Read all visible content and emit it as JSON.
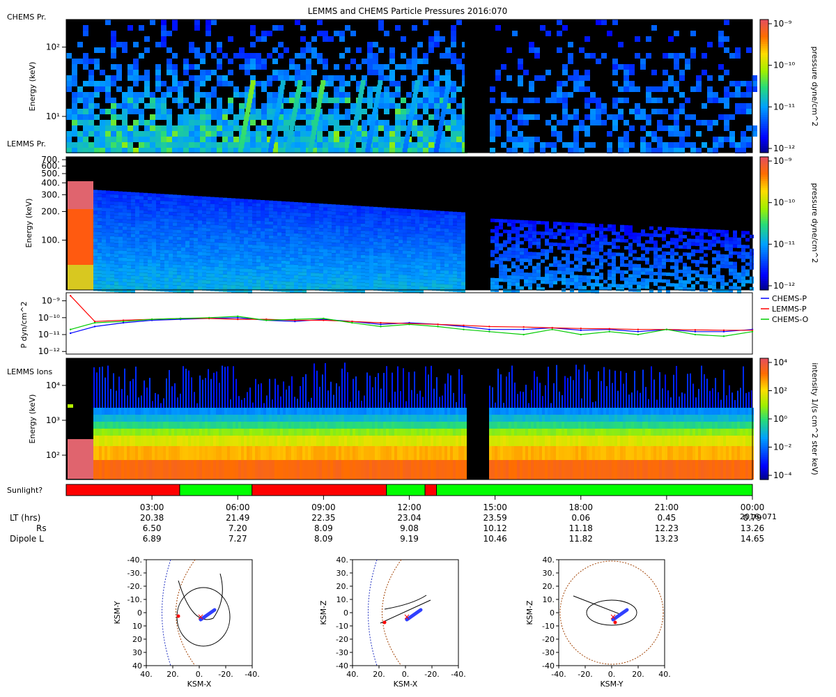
{
  "title": "LEMMS and CHEMS Particle Pressures  2016:070",
  "panel_labels": {
    "chems": "CHEMS Pr.",
    "lemms": "LEMMS Pr.",
    "ions": "LEMMS Ions",
    "sunlight": "Sunlight?"
  },
  "colors": {
    "chems_p": "#0000ff",
    "lemms_p": "#ff0000",
    "chems_o": "#00cc00",
    "sun_red": "#ff0000",
    "sun_green": "#00ff00",
    "background": "#000000"
  },
  "chart_data": [
    {
      "id": "chems-spectrogram",
      "type": "heatmap",
      "ylabel": "Energy (keV)",
      "yscale": "log",
      "ylim": [
        3,
        250
      ],
      "yticks": [
        {
          "value": 10,
          "label": "10¹"
        },
        {
          "value": 100,
          "label": "10²"
        }
      ],
      "colorbar": {
        "label": "pressure dyne/cm^2",
        "scale": "log",
        "range": [
          1e-12,
          1e-09
        ],
        "ticks": [
          "10⁻⁹",
          "10⁻¹⁰",
          "10⁻¹¹",
          "10⁻¹²"
        ]
      },
      "data_gap_hours": [
        13.95,
        14.7
      ]
    },
    {
      "id": "lemms-spectrogram",
      "type": "heatmap",
      "ylabel": "Energy (keV)",
      "yscale": "log",
      "ylim": [
        30,
        750
      ],
      "yticks": [
        {
          "value": 100,
          "label": "100."
        },
        {
          "value": 200,
          "label": "200."
        },
        {
          "value": 300,
          "label": "300."
        },
        {
          "value": 400,
          "label": "400."
        },
        {
          "value": 500,
          "label": "500."
        },
        {
          "value": 600,
          "label": "600."
        },
        {
          "value": 700,
          "label": "700."
        }
      ],
      "colorbar": {
        "label": "pressure dyne/cm^2",
        "scale": "log",
        "range": [
          1e-12,
          1e-09
        ],
        "ticks": [
          "10⁻⁹",
          "10⁻¹⁰",
          "10⁻¹¹",
          "10⁻¹²"
        ]
      },
      "data_gap_hours": [
        13.95,
        14.7
      ]
    },
    {
      "id": "pressure-lines",
      "type": "line",
      "ylabel": "P dyn/cm^2",
      "yscale": "log",
      "ylim": [
        7e-13,
        3e-09
      ],
      "yticks": [
        {
          "value": 1e-09,
          "label": "10⁻⁹"
        },
        {
          "value": 1e-10,
          "label": "10⁻¹⁰"
        },
        {
          "value": 1e-11,
          "label": "10⁻¹¹"
        },
        {
          "value": 1e-12,
          "label": "10⁻¹²"
        }
      ],
      "legend": [
        "CHEMS-P",
        "LEMMS-P",
        "CHEMS-O"
      ],
      "x_hours": [
        0.15,
        1.0,
        2.0,
        3.0,
        4.0,
        5.0,
        6.0,
        7.0,
        8.0,
        9.0,
        10.0,
        11.0,
        12.0,
        13.0,
        13.9,
        14.8,
        16.0,
        17.0,
        18.0,
        19.0,
        20.0,
        21.0,
        22.0,
        23.0,
        24.0
      ],
      "series": [
        {
          "name": "CHEMS-P",
          "values": [
            1.2e-11,
            3e-11,
            5e-11,
            7e-11,
            8e-11,
            9e-11,
            1e-10,
            7e-11,
            6e-11,
            8e-11,
            6e-11,
            4e-11,
            5e-11,
            4e-11,
            3e-11,
            2e-11,
            2e-11,
            2.5e-11,
            1.8e-11,
            2e-11,
            1.5e-11,
            2e-11,
            1.5e-11,
            1.5e-11,
            2e-11
          ]
        },
        {
          "name": "LEMMS-P",
          "values": [
            2e-09,
            6e-11,
            7e-11,
            8e-11,
            9e-11,
            9e-11,
            8e-11,
            8e-11,
            7e-11,
            7e-11,
            6e-11,
            5e-11,
            4.5e-11,
            4e-11,
            3.5e-11,
            3e-11,
            2.8e-11,
            2.5e-11,
            2.3e-11,
            2.2e-11,
            2e-11,
            2e-11,
            1.9e-11,
            1.8e-11,
            1.8e-11
          ]
        },
        {
          "name": "CHEMS-O",
          "values": [
            2e-11,
            5e-11,
            6e-11,
            8e-11,
            9e-11,
            1e-10,
            1.2e-10,
            7e-11,
            8e-11,
            9e-11,
            5e-11,
            3e-11,
            4e-11,
            3e-11,
            2e-11,
            1.5e-11,
            1e-11,
            2e-11,
            1e-11,
            1.5e-11,
            1e-11,
            2e-11,
            1e-11,
            8e-12,
            1.5e-11
          ]
        }
      ]
    },
    {
      "id": "lemms-ions",
      "type": "heatmap",
      "ylabel": "Energy (keV)",
      "yscale": "log",
      "ylim": [
        20,
        60000
      ],
      "yticks": [
        {
          "value": 100,
          "label": "10²"
        },
        {
          "value": 1000,
          "label": "10³"
        },
        {
          "value": 10000,
          "label": "10⁴"
        }
      ],
      "colorbar": {
        "label": "intensity 1/(s cm^2 ster keV)",
        "scale": "log",
        "range": [
          3e-05,
          10000
        ],
        "ticks": [
          "10⁴",
          "10²",
          "10⁰",
          "10⁻²",
          "10⁻⁴"
        ]
      },
      "data_gap_hours": [
        13.95,
        14.7
      ]
    }
  ],
  "sunlight": {
    "segments": [
      {
        "start_h": 0.0,
        "end_h": 3.97,
        "state": "red"
      },
      {
        "start_h": 3.97,
        "end_h": 6.5,
        "state": "green"
      },
      {
        "start_h": 6.5,
        "end_h": 11.2,
        "state": "red"
      },
      {
        "start_h": 11.2,
        "end_h": 12.55,
        "state": "green"
      },
      {
        "start_h": 12.55,
        "end_h": 12.95,
        "state": "red"
      },
      {
        "start_h": 12.95,
        "end_h": 24.0,
        "state": "green"
      }
    ]
  },
  "time_axis": {
    "ticks": [
      {
        "hour": 3,
        "label": "03:00"
      },
      {
        "hour": 6,
        "label": "06:00"
      },
      {
        "hour": 9,
        "label": "09:00"
      },
      {
        "hour": 12,
        "label": "12:00"
      },
      {
        "hour": 15,
        "label": "15:00"
      },
      {
        "hour": 18,
        "label": "18:00"
      },
      {
        "hour": 21,
        "label": "21:00"
      },
      {
        "hour": 24,
        "label": "00:00"
      }
    ],
    "end_date": "2016-071"
  },
  "ephemeris": {
    "rows": [
      {
        "label": "LT (hrs)",
        "values": [
          "20.38",
          "21.49",
          "22.35",
          "23.04",
          "23.59",
          "0.06",
          "0.45",
          "0.79"
        ]
      },
      {
        "label": "Rs",
        "values": [
          "6.50",
          "7.20",
          "8.09",
          "9.08",
          "10.12",
          "11.18",
          "12.23",
          "13.26"
        ]
      },
      {
        "label": "Dipole L",
        "values": [
          "6.89",
          "7.27",
          "8.09",
          "9.19",
          "10.46",
          "11.82",
          "13.23",
          "14.65"
        ]
      }
    ]
  },
  "orbit_plots": [
    {
      "id": "ksm-xy",
      "xlabel": "KSM-X",
      "ylabel": "KSM-Y",
      "xticks": [
        "40.",
        "20.",
        "0.",
        "-20.",
        "-40."
      ],
      "yticks": [
        "-40.",
        "-30.",
        "-20.",
        "-10.",
        "0",
        "10",
        "20",
        "30",
        "40"
      ]
    },
    {
      "id": "ksm-xz",
      "xlabel": "KSM-X",
      "ylabel": "KSM-Z",
      "xticks": [
        "40.",
        "20.",
        "0.",
        "-20.",
        "-40."
      ],
      "yticks": [
        "40.",
        "30.",
        "20.",
        "10.",
        "0",
        "-10",
        "-20",
        "-30",
        "-40"
      ]
    },
    {
      "id": "ksm-yz",
      "xlabel": "KSM-Y",
      "ylabel": "KSM-Z",
      "xticks": [
        "-40.",
        "-20.",
        "0.",
        "20.",
        "40."
      ],
      "yticks": [
        "40.",
        "30.",
        "20.",
        "10.",
        "0",
        "-10",
        "-20",
        "-30",
        "-40"
      ]
    }
  ]
}
